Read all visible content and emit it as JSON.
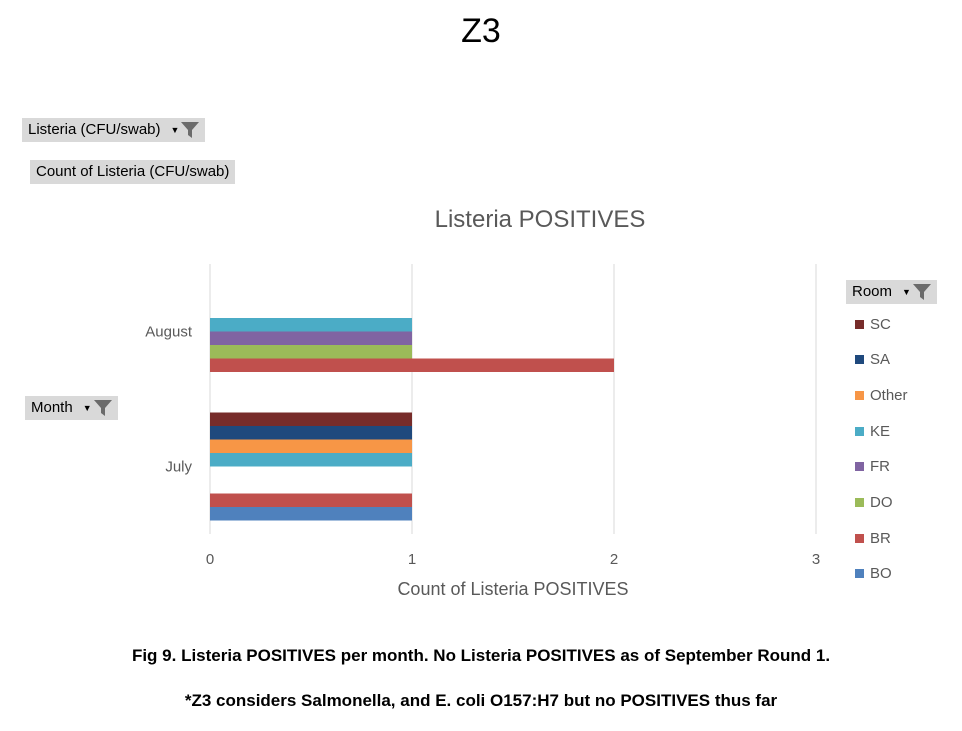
{
  "page": {
    "title": "Z3",
    "caption_line1": "Fig 9. Listeria POSITIVES per month. No Listeria POSITIVES as of September Round 1.",
    "caption_line2": "*Z3 considers Salmonella, and E. coli O157:H7 but no POSITIVES thus far"
  },
  "pivot": {
    "filter_field": "Listeria (CFU/swab)",
    "values_field": "Count of Listeria (CFU/swab)",
    "row_field": "Month",
    "legend_field": "Room",
    "filter_icon": "funnel-icon",
    "dropdown_icon": "chevron-down-icon"
  },
  "chart_data": {
    "type": "bar",
    "orientation": "horizontal",
    "title": "Listeria POSITIVES",
    "xlabel": "Count of Listeria POSITIVES",
    "ylabel": "",
    "xlim": [
      0,
      3
    ],
    "x_ticks": [
      0,
      1,
      2,
      3
    ],
    "grid": true,
    "legend_position": "right",
    "categories": [
      "July",
      "August"
    ],
    "series": [
      {
        "name": "BO",
        "color": "#4f81bd",
        "values": [
          1,
          0
        ]
      },
      {
        "name": "BR",
        "color": "#c0504d",
        "values": [
          1,
          2
        ]
      },
      {
        "name": "DO",
        "color": "#9bbb59",
        "values": [
          0,
          1
        ]
      },
      {
        "name": "FR",
        "color": "#8064a2",
        "values": [
          0,
          1
        ]
      },
      {
        "name": "KE",
        "color": "#4bacc6",
        "values": [
          1,
          1
        ]
      },
      {
        "name": "Other",
        "color": "#f79646",
        "values": [
          1,
          0
        ]
      },
      {
        "name": "SA",
        "color": "#1f497d",
        "values": [
          1,
          0
        ]
      },
      {
        "name": "SC",
        "color": "#772c2a",
        "values": [
          1,
          0
        ]
      }
    ]
  }
}
